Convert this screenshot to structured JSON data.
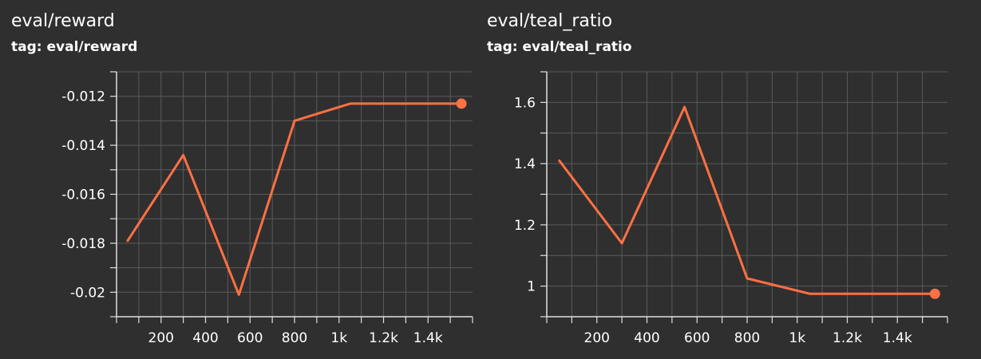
{
  "colors": {
    "background": "#2f2f2f",
    "grid": "#5a5a5a",
    "axis": "#e0e0e0",
    "series": "#ff7043",
    "text": "#ffffff"
  },
  "chart_data": [
    {
      "type": "line",
      "title": "eval/reward",
      "subtitle": "tag: eval/reward",
      "x": [
        50,
        300,
        550,
        800,
        1050,
        1550
      ],
      "y": [
        -0.0179,
        -0.0144,
        -0.0201,
        -0.013,
        -0.0123,
        -0.0123
      ],
      "xlim": [
        0,
        1600
      ],
      "ylim": [
        -0.021,
        -0.011
      ],
      "xticks": [
        200,
        400,
        600,
        800,
        1000,
        1200,
        1400
      ],
      "xtick_labels": [
        "200",
        "400",
        "600",
        "800",
        "1k",
        "1.2k",
        "1.4k"
      ],
      "yticks": [
        -0.02,
        -0.018,
        -0.016,
        -0.014,
        -0.012
      ],
      "ytick_labels": [
        "-0.02",
        "-0.018",
        "-0.016",
        "-0.014",
        "-0.012"
      ],
      "grid": true,
      "last_point_marker": true
    },
    {
      "type": "line",
      "title": "eval/teal_ratio",
      "subtitle": "tag: eval/teal_ratio",
      "x": [
        50,
        300,
        550,
        800,
        1050,
        1550
      ],
      "y": [
        1.41,
        1.14,
        1.585,
        1.025,
        0.975,
        0.975
      ],
      "xlim": [
        0,
        1600
      ],
      "ylim": [
        0.9,
        1.7
      ],
      "xticks": [
        200,
        400,
        600,
        800,
        1000,
        1200,
        1400
      ],
      "xtick_labels": [
        "200",
        "400",
        "600",
        "800",
        "1k",
        "1.2k",
        "1.4k"
      ],
      "yticks": [
        1.0,
        1.2,
        1.4,
        1.6
      ],
      "ytick_labels": [
        "1",
        "1.2",
        "1.4",
        "1.6"
      ],
      "grid": true,
      "last_point_marker": true
    }
  ]
}
